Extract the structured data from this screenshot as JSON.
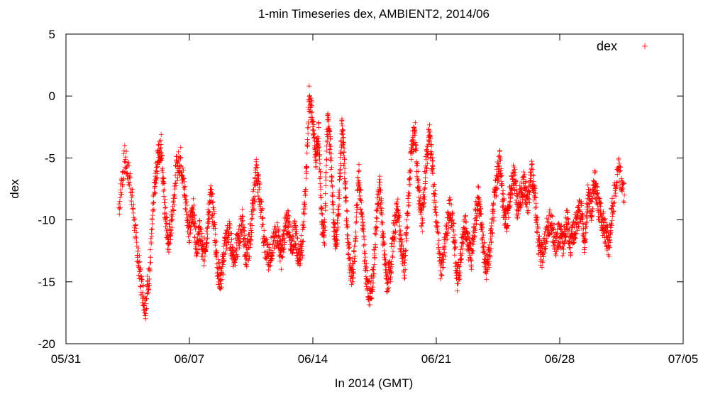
{
  "colors": {
    "series": "#ff0000",
    "axis": "#000000",
    "background": "#ffffff"
  },
  "chart_data": {
    "type": "scatter",
    "title": "1-min Timeseries dex, AMBIENT2, 2014/06",
    "xlabel": "In 2014 (GMT)",
    "ylabel": "dex",
    "x_unit": "date (days in 2014)",
    "xlim": [
      "05/31",
      "07/05"
    ],
    "ylim": [
      -20,
      5
    ],
    "x_ticks": [
      "05/31",
      "06/07",
      "06/14",
      "06/21",
      "06/28",
      "07/05"
    ],
    "y_ticks": [
      "5",
      "0",
      "-5",
      "-10",
      "-15",
      "-20"
    ],
    "grid": false,
    "legend": {
      "position": "top-right",
      "entries": [
        "dex"
      ]
    },
    "marker": "+",
    "series": [
      {
        "name": "dex",
        "color": "#ff0000",
        "x_start": "06/03",
        "x_end": "07/01",
        "trace": [
          [
            "06/03",
            -9
          ],
          [
            "06/03",
            -5
          ],
          [
            "06/03",
            -7
          ],
          [
            "06/04",
            -12
          ],
          [
            "06/04",
            -15
          ],
          [
            "06/04",
            -17
          ],
          [
            "06/04",
            -14
          ],
          [
            "06/05",
            -8
          ],
          [
            "06/05",
            -5
          ],
          [
            "06/05",
            -4
          ],
          [
            "06/05",
            -9
          ],
          [
            "06/05",
            -12
          ],
          [
            "06/06",
            -10
          ],
          [
            "06/06",
            -6
          ],
          [
            "06/06",
            -5
          ],
          [
            "06/06",
            -8
          ],
          [
            "06/07",
            -11
          ],
          [
            "06/07",
            -9
          ],
          [
            "06/07",
            -12
          ],
          [
            "06/07",
            -11
          ],
          [
            "06/07",
            -13
          ],
          [
            "06/08",
            -11
          ],
          [
            "06/08",
            -8
          ],
          [
            "06/08",
            -10
          ],
          [
            "06/08",
            -14
          ],
          [
            "06/08",
            -15
          ],
          [
            "06/09",
            -12
          ],
          [
            "06/09",
            -11
          ],
          [
            "06/09",
            -13
          ],
          [
            "06/09",
            -12
          ],
          [
            "06/10",
            -10
          ],
          [
            "06/10",
            -13
          ],
          [
            "06/10",
            -12
          ],
          [
            "06/10",
            -9
          ],
          [
            "06/10",
            -6
          ],
          [
            "06/11",
            -8
          ],
          [
            "06/11",
            -12
          ],
          [
            "06/11",
            -13
          ],
          [
            "06/11",
            -12
          ],
          [
            "06/12",
            -11
          ],
          [
            "06/12",
            -13
          ],
          [
            "06/12",
            -11
          ],
          [
            "06/12",
            -10
          ],
          [
            "06/12",
            -12
          ],
          [
            "06/13",
            -11
          ],
          [
            "06/13",
            -13
          ],
          [
            "06/13",
            -12
          ],
          [
            "06/13",
            -7
          ],
          [
            "06/13",
            0
          ],
          [
            "06/14",
            -2
          ],
          [
            "06/14",
            -5
          ],
          [
            "06/14",
            -3
          ],
          [
            "06/14",
            -10
          ],
          [
            "06/14",
            -11
          ],
          [
            "06/14",
            -2
          ],
          [
            "06/15",
            -4
          ],
          [
            "06/15",
            -10
          ],
          [
            "06/15",
            -12
          ],
          [
            "06/15",
            -8
          ],
          [
            "06/15",
            -2
          ],
          [
            "06/15",
            -7
          ],
          [
            "06/16",
            -12
          ],
          [
            "06/16",
            -15
          ],
          [
            "06/16",
            -12
          ],
          [
            "06/16",
            -6
          ],
          [
            "06/16",
            -10
          ],
          [
            "06/17",
            -14
          ],
          [
            "06/17",
            -16
          ],
          [
            "06/17",
            -15
          ],
          [
            "06/17",
            -10
          ],
          [
            "06/17",
            -7
          ],
          [
            "06/18",
            -12
          ],
          [
            "06/18",
            -15
          ],
          [
            "06/18",
            -14
          ],
          [
            "06/18",
            -11
          ],
          [
            "06/18",
            -9
          ],
          [
            "06/19",
            -12
          ],
          [
            "06/19",
            -14
          ],
          [
            "06/19",
            -9
          ],
          [
            "06/19",
            -4
          ],
          [
            "06/19",
            -3
          ],
          [
            "06/20",
            -8
          ],
          [
            "06/20",
            -10
          ],
          [
            "06/20",
            -6
          ],
          [
            "06/20",
            -3
          ],
          [
            "06/20",
            -6
          ],
          [
            "06/21",
            -10
          ],
          [
            "06/21",
            -14
          ],
          [
            "06/21",
            -12
          ],
          [
            "06/21",
            -9
          ],
          [
            "06/22",
            -11
          ],
          [
            "06/22",
            -15
          ],
          [
            "06/22",
            -13
          ],
          [
            "06/22",
            -10
          ],
          [
            "06/22",
            -12
          ],
          [
            "06/23",
            -13
          ],
          [
            "06/23",
            -10
          ],
          [
            "06/23",
            -8
          ],
          [
            "06/23",
            -11
          ],
          [
            "06/23",
            -14
          ],
          [
            "06/24",
            -13
          ],
          [
            "06/24",
            -10
          ],
          [
            "06/24",
            -7
          ],
          [
            "06/24",
            -5
          ],
          [
            "06/24",
            -9
          ],
          [
            "06/25",
            -10
          ],
          [
            "06/25",
            -8
          ],
          [
            "06/25",
            -6
          ],
          [
            "06/25",
            -9
          ],
          [
            "06/25",
            -8
          ],
          [
            "06/26",
            -7
          ],
          [
            "06/26",
            -9
          ],
          [
            "06/26",
            -6
          ],
          [
            "06/26",
            -8
          ],
          [
            "06/26",
            -12
          ],
          [
            "06/27",
            -13
          ],
          [
            "06/27",
            -11
          ],
          [
            "06/27",
            -10
          ],
          [
            "06/27",
            -12
          ],
          [
            "06/28",
            -11
          ],
          [
            "06/28",
            -12
          ],
          [
            "06/28",
            -10
          ],
          [
            "06/28",
            -12
          ],
          [
            "06/28",
            -11
          ],
          [
            "06/29",
            -10
          ],
          [
            "06/29",
            -9
          ],
          [
            "06/29",
            -12
          ],
          [
            "06/29",
            -8
          ],
          [
            "06/29",
            -9
          ],
          [
            "06/30",
            -7
          ],
          [
            "06/30",
            -9
          ],
          [
            "06/30",
            -10
          ],
          [
            "06/30",
            -11
          ],
          [
            "06/30",
            -12
          ],
          [
            "07/01",
            -9
          ],
          [
            "07/01",
            -6
          ],
          [
            "07/01",
            -8
          ]
        ]
      }
    ]
  }
}
